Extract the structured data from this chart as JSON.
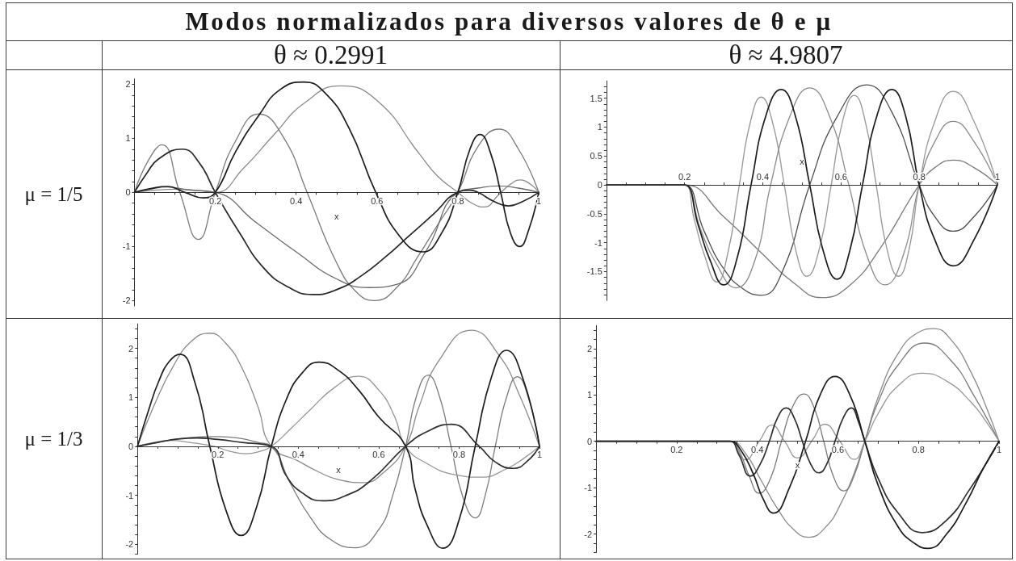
{
  "chart_data": [
    {
      "type": "line",
      "title": "Modos normalizados para diversos valores de θ e μ",
      "subtitle": "θ ≈ 0.2991",
      "ylabel": "μ = 1/5",
      "xlabel": "x",
      "marker": "none",
      "xlim": [
        0,
        1
      ],
      "ylim": [
        -2.1,
        2.1
      ],
      "xticks": [
        {
          "value": 0.05,
          "label": null
        },
        {
          "value": 0.1,
          "label": null
        },
        {
          "value": 0.15,
          "label": null
        },
        0.2,
        {
          "value": 0.25,
          "label": null
        },
        {
          "value": 0.3,
          "label": null
        },
        {
          "value": 0.35,
          "label": null
        },
        0.4,
        {
          "value": 0.45,
          "label": null
        },
        {
          "value": 0.5,
          "label": null
        },
        {
          "value": 0.55,
          "label": null
        },
        0.6,
        {
          "value": 0.65,
          "label": null
        },
        {
          "value": 0.7,
          "label": null
        },
        {
          "value": 0.75,
          "label": null
        },
        0.8,
        {
          "value": 0.85,
          "label": null
        },
        {
          "value": 0.9,
          "label": null
        },
        {
          "value": 0.95,
          "label": null
        },
        1
      ],
      "yticks": [
        -2,
        {
          "value": -1.8,
          "label": null
        },
        {
          "value": -1.6,
          "label": null
        },
        {
          "value": -1.4,
          "label": null
        },
        {
          "value": -1.2,
          "label": null
        },
        -1,
        {
          "value": -0.8,
          "label": null
        },
        {
          "value": -0.6,
          "label": null
        },
        {
          "value": -0.4,
          "label": null
        },
        {
          "value": -0.2,
          "label": null
        },
        0,
        {
          "value": 0.2,
          "label": null
        },
        {
          "value": 0.4,
          "label": null
        },
        {
          "value": 0.6,
          "label": null
        },
        {
          "value": 0.8,
          "label": null
        },
        1,
        {
          "value": 1.2,
          "label": null
        },
        {
          "value": 1.4,
          "label": null
        },
        {
          "value": 1.6,
          "label": null
        },
        {
          "value": 1.8,
          "label": null
        },
        2
      ],
      "series": [
        {
          "color": "#8a8a8a",
          "x": [
            0,
            0.05,
            0.1,
            0.15,
            0.2,
            0.27,
            0.343,
            0.42,
            0.51,
            0.6,
            0.706,
            0.75,
            0.8,
            0.835,
            0.866,
            0.9,
            0.93,
            0.953,
            0.98,
            1
          ],
          "values": [
            0,
            0.04,
            0.06,
            0.04,
            0,
            0.45,
            1.05,
            1.65,
            1.97,
            1.7,
            0.7,
            0.3,
            0,
            -0.2,
            -0.27,
            -0.05,
            0.15,
            0.23,
            0.15,
            0
          ]
        },
        {
          "color": "#7a7a7a",
          "x": [
            0,
            0.035,
            0.068,
            0.112,
            0.158,
            0.2,
            0.25,
            0.308,
            0.37,
            0.427,
            0.5,
            0.55,
            0.594,
            0.65,
            0.7,
            0.75,
            0.8,
            0.85,
            0.902,
            0.95,
            1
          ],
          "values": [
            0,
            0.6,
            0.88,
            0,
            -0.87,
            0,
            0.95,
            1.45,
            1.0,
            0,
            -1.3,
            -1.85,
            -2.0,
            -1.75,
            -1.2,
            -0.6,
            0,
            0.85,
            1.17,
            0.8,
            0
          ]
        },
        {
          "color": "#6a6a6a",
          "x": [
            0,
            0.04,
            0.08,
            0.13,
            0.2,
            0.3,
            0.4,
            0.5,
            0.58,
            0.65,
            0.72,
            0.8,
            0.85,
            0.9,
            0.95,
            1
          ],
          "values": [
            0,
            0.06,
            0.1,
            0.05,
            0,
            -0.55,
            -1.1,
            -1.6,
            -1.76,
            -1.7,
            -1.1,
            0,
            0.08,
            0.12,
            0.08,
            0
          ]
        },
        {
          "color": "#262626",
          "x": [
            0,
            0.03,
            0.06,
            0.118,
            0.16,
            0.2,
            0.26,
            0.32,
            0.38,
            0.441,
            0.5,
            0.56,
            0.62,
            0.68,
            0.74,
            0.8,
            0.83,
            0.85,
            0.89,
            0.925,
            0.96,
            1
          ],
          "values": [
            0,
            0.35,
            0.62,
            0.8,
            0.55,
            0,
            -0.75,
            -1.4,
            -1.75,
            -1.89,
            -1.8,
            -1.55,
            -1.2,
            -0.8,
            -0.4,
            0,
            0.04,
            0,
            -0.17,
            -0.25,
            -0.17,
            0
          ]
        },
        {
          "color": "#1c1c1c",
          "x": [
            0,
            0.04,
            0.08,
            0.125,
            0.17,
            0.2,
            0.25,
            0.31,
            0.36,
            0.419,
            0.47,
            0.53,
            0.597,
            0.655,
            0.713,
            0.76,
            0.8,
            0.83,
            0.855,
            0.88,
            0.906,
            0.93,
            0.953,
            0.975,
            1
          ],
          "values": [
            0,
            0.07,
            0.11,
            0,
            -0.1,
            0,
            0.75,
            1.45,
            1.9,
            2.04,
            1.85,
            1.2,
            0,
            -0.8,
            -1.1,
            -0.75,
            0,
            0.8,
            1.07,
            0.75,
            0,
            -0.75,
            -1.0,
            -0.7,
            0
          ]
        }
      ]
    },
    {
      "type": "line",
      "subtitle": "θ ≈ 4.9807",
      "xlabel": "x",
      "marker": "none",
      "xlim": [
        0,
        1
      ],
      "ylim": [
        -2,
        1.8
      ],
      "xticks": [
        {
          "value": 0.05,
          "label": null
        },
        {
          "value": 0.1,
          "label": null
        },
        {
          "value": 0.15,
          "label": null
        },
        0.2,
        {
          "value": 0.25,
          "label": null
        },
        {
          "value": 0.3,
          "label": null
        },
        {
          "value": 0.35,
          "label": null
        },
        0.4,
        {
          "value": 0.45,
          "label": null
        },
        {
          "value": 0.5,
          "label": null
        },
        {
          "value": 0.55,
          "label": null
        },
        0.6,
        {
          "value": 0.65,
          "label": null
        },
        {
          "value": 0.7,
          "label": null
        },
        {
          "value": 0.75,
          "label": null
        },
        0.8,
        {
          "value": 0.85,
          "label": null
        },
        {
          "value": 0.9,
          "label": null
        },
        {
          "value": 0.95,
          "label": null
        },
        1
      ],
      "yticks": [
        {
          "value": -1.9,
          "label": null
        },
        {
          "value": -1.8,
          "label": null
        },
        {
          "value": -1.7,
          "label": null
        },
        {
          "value": -1.6,
          "label": null
        },
        -1.5,
        {
          "value": -1.4,
          "label": null
        },
        {
          "value": -1.3,
          "label": null
        },
        {
          "value": -1.2,
          "label": null
        },
        {
          "value": -1.1,
          "label": null
        },
        -1,
        {
          "value": -0.9,
          "label": null
        },
        {
          "value": -0.8,
          "label": null
        },
        {
          "value": -0.7,
          "label": null
        },
        {
          "value": -0.6,
          "label": null
        },
        -0.5,
        {
          "value": -0.4,
          "label": null
        },
        {
          "value": -0.3,
          "label": null
        },
        {
          "value": -0.2,
          "label": null
        },
        {
          "value": -0.1,
          "label": null
        },
        0,
        {
          "value": 0.1,
          "label": null
        },
        {
          "value": 0.2,
          "label": null
        },
        {
          "value": 0.3,
          "label": null
        },
        {
          "value": 0.4,
          "label": null
        },
        0.5,
        {
          "value": 0.6,
          "label": null
        },
        {
          "value": 0.7,
          "label": null
        },
        {
          "value": 0.8,
          "label": null
        },
        {
          "value": 0.9,
          "label": null
        },
        1,
        {
          "value": 1.1,
          "label": null
        },
        {
          "value": 1.2,
          "label": null
        },
        {
          "value": 1.3,
          "label": null
        },
        {
          "value": 1.4,
          "label": null
        },
        1.5,
        {
          "value": 1.6,
          "label": null
        },
        {
          "value": 1.7,
          "label": null
        }
      ],
      "series": [
        {
          "color": "#7a7a7a",
          "x": [
            0,
            0.17,
            0.2,
            0.3,
            0.4,
            0.48,
            0.551,
            0.62,
            0.7,
            0.8,
            0.84,
            0.887,
            0.94,
            1
          ],
          "values": [
            0,
            0,
            0,
            -0.55,
            -1.2,
            -1.7,
            -1.95,
            -1.75,
            -1.1,
            0,
            0.3,
            0.43,
            0.3,
            0
          ]
        },
        {
          "color": "#4d4d4d",
          "x": [
            0,
            0.17,
            0.2,
            0.25,
            0.3,
            0.35,
            0.396,
            0.45,
            0.52,
            0.59,
            0.666,
            0.73,
            0.8,
            0.84,
            0.887,
            0.94,
            1
          ],
          "values": [
            0,
            0,
            0,
            -0.8,
            -1.45,
            -1.8,
            -1.91,
            -1.5,
            0,
            1.18,
            1.73,
            1.26,
            0,
            -0.55,
            -0.8,
            -0.55,
            0
          ]
        },
        {
          "color": "#8a8a8a",
          "x": [
            0,
            0.17,
            0.2,
            0.24,
            0.28,
            0.332,
            0.38,
            0.42,
            0.47,
            0.52,
            0.57,
            0.62,
            0.665,
            0.713,
            0.76,
            0.8,
            0.84,
            0.887,
            0.94,
            1
          ],
          "values": [
            0,
            0,
            0,
            -0.75,
            -1.35,
            -1.78,
            -1.3,
            0,
            1.2,
            1.68,
            1.2,
            0,
            -1.2,
            -1.73,
            -1.2,
            0,
            0.75,
            1.1,
            0.75,
            0
          ]
        },
        {
          "color": "#969696",
          "x": [
            0,
            0.17,
            0.2,
            0.225,
            0.25,
            0.283,
            0.31,
            0.34,
            0.368,
            0.396,
            0.425,
            0.455,
            0.484,
            0.513,
            0.544,
            0.575,
            0.604,
            0.634,
            0.662,
            0.69,
            0.718,
            0.747,
            0.774,
            0.8,
            0.84,
            0.887,
            0.94,
            1
          ],
          "values": [
            0,
            0,
            0,
            -0.6,
            -1.2,
            -1.68,
            -1.2,
            0,
            1.08,
            1.52,
            1.08,
            0,
            -1.12,
            -1.58,
            -1.12,
            0,
            1.1,
            1.55,
            1.1,
            0,
            -1.12,
            -1.58,
            -1.12,
            0,
            1.1,
            1.62,
            1.1,
            0
          ]
        },
        {
          "color": "#1c1c1c",
          "x": [
            0,
            0.17,
            0.2,
            0.235,
            0.265,
            0.3,
            0.335,
            0.37,
            0.408,
            0.447,
            0.483,
            0.52,
            0.555,
            0.59,
            0.622,
            0.655,
            0.692,
            0.73,
            0.765,
            0.8,
            0.84,
            0.887,
            0.94,
            1
          ],
          "values": [
            0,
            0,
            0,
            -0.7,
            -1.3,
            -1.73,
            -1.25,
            0,
            1.2,
            1.65,
            1.2,
            0,
            -1.15,
            -1.63,
            -1.15,
            0,
            1.2,
            1.65,
            1.2,
            0,
            -0.95,
            -1.4,
            -0.95,
            0
          ]
        }
      ]
    },
    {
      "type": "line",
      "ylabel": "μ = 1/3",
      "xlabel": "x",
      "marker": "none",
      "xlim": [
        0,
        1
      ],
      "ylim": [
        -2.2,
        2.5
      ],
      "xticks": [
        {
          "value": 0.05,
          "label": null
        },
        {
          "value": 0.1,
          "label": null
        },
        {
          "value": 0.15,
          "label": null
        },
        0.2,
        {
          "value": 0.25,
          "label": null
        },
        {
          "value": 0.3,
          "label": null
        },
        {
          "value": 0.35,
          "label": null
        },
        0.4,
        {
          "value": 0.45,
          "label": null
        },
        {
          "value": 0.5,
          "label": null
        },
        {
          "value": 0.55,
          "label": null
        },
        0.6,
        {
          "value": 0.65,
          "label": null
        },
        {
          "value": 0.7,
          "label": null
        },
        {
          "value": 0.75,
          "label": null
        },
        0.8,
        {
          "value": 0.85,
          "label": null
        },
        {
          "value": 0.9,
          "label": null
        },
        {
          "value": 0.95,
          "label": null
        },
        1
      ],
      "yticks": [
        {
          "value": -2.2,
          "label": null
        },
        -2,
        {
          "value": -1.8,
          "label": null
        },
        {
          "value": -1.6,
          "label": null
        },
        {
          "value": -1.4,
          "label": null
        },
        {
          "value": -1.2,
          "label": null
        },
        -1,
        {
          "value": -0.8,
          "label": null
        },
        {
          "value": -0.6,
          "label": null
        },
        {
          "value": -0.4,
          "label": null
        },
        {
          "value": -0.2,
          "label": null
        },
        0,
        {
          "value": 0.2,
          "label": null
        },
        {
          "value": 0.4,
          "label": null
        },
        {
          "value": 0.6,
          "label": null
        },
        {
          "value": 0.8,
          "label": null
        },
        1,
        {
          "value": 1.2,
          "label": null
        },
        {
          "value": 1.4,
          "label": null
        },
        {
          "value": 1.6,
          "label": null
        },
        {
          "value": 1.8,
          "label": null
        },
        2,
        {
          "value": 2.2,
          "label": null
        },
        {
          "value": 2.4,
          "label": null
        }
      ],
      "series": [
        {
          "color": "#8a8a8a",
          "x": [
            0,
            0.045,
            0.09,
            0.135,
            0.18,
            0.22,
            0.26,
            0.3,
            0.333,
            0.4,
            0.45,
            0.5,
            0.563,
            0.61,
            0.667,
            0.7,
            0.75,
            0.83,
            0.9,
            0.95,
            1
          ],
          "values": [
            0,
            0.9,
            1.65,
            2.15,
            2.31,
            2.1,
            1.6,
            0.8,
            0,
            -0.3,
            -0.52,
            -0.68,
            -0.74,
            -0.55,
            0,
            0.8,
            1.75,
            2.37,
            1.85,
            1.05,
            0
          ]
        },
        {
          "color": "#7a7a7a",
          "x": [
            0,
            0.05,
            0.1,
            0.15,
            0.2,
            0.25,
            0.3,
            0.333,
            0.38,
            0.43,
            0.48,
            0.541,
            0.6,
            0.635,
            0.667,
            0.695,
            0.723,
            0.75,
            0.78,
            0.81,
            0.84,
            0.865,
            0.89,
            0.918,
            0.945,
            0.972,
            1
          ],
          "values": [
            0,
            0.08,
            0.15,
            0.19,
            0.2,
            0.17,
            0.08,
            0,
            -0.75,
            -1.45,
            -1.9,
            -2.07,
            -1.7,
            -1.0,
            0,
            1.05,
            1.45,
            1.05,
            0,
            -1.05,
            -1.46,
            -1.0,
            0,
            1.0,
            1.42,
            1.0,
            0
          ]
        },
        {
          "color": "#969696",
          "x": [
            0,
            0.04,
            0.08,
            0.13,
            0.19,
            0.23,
            0.27,
            0.305,
            0.333,
            0.38,
            0.43,
            0.49,
            0.549,
            0.6,
            0.64,
            0.667,
            0.72,
            0.79,
            0.855,
            0.92,
            0.96,
            1
          ],
          "values": [
            0,
            0.08,
            0.12,
            0.08,
            0,
            -0.1,
            -0.15,
            -0.1,
            0,
            0.35,
            0.75,
            1.2,
            1.43,
            1.15,
            0.6,
            0,
            -0.35,
            -0.58,
            -0.63,
            -0.45,
            -0.25,
            0
          ]
        },
        {
          "color": "#2e2e2e",
          "x": [
            0,
            0.05,
            0.1,
            0.15,
            0.2,
            0.26,
            0.333,
            0.37,
            0.41,
            0.46,
            0.52,
            0.58,
            0.667,
            0.72,
            0.78,
            0.85,
            0.89,
            0.936,
            0.97,
            1
          ],
          "values": [
            0,
            0.08,
            0.15,
            0.17,
            0.14,
            0.08,
            0,
            -0.6,
            -0.95,
            -1.11,
            -1.0,
            -0.7,
            0,
            0.3,
            0.45,
            0,
            -0.32,
            -0.45,
            -0.3,
            0
          ]
        },
        {
          "color": "#1c1c1c",
          "x": [
            0,
            0.027,
            0.053,
            0.08,
            0.106,
            0.143,
            0.18,
            0.22,
            0.258,
            0.296,
            0.333,
            0.37,
            0.41,
            0.452,
            0.5,
            0.55,
            0.6,
            0.667,
            0.69,
            0.72,
            0.76,
            0.8,
            0.84,
            0.88,
            0.918,
            0.96,
            1
          ],
          "values": [
            0,
            0.72,
            1.33,
            1.74,
            1.88,
            1.3,
            0,
            -1.3,
            -1.82,
            -1.25,
            0,
            0.95,
            1.5,
            1.72,
            1.55,
            1.15,
            0.6,
            0,
            -0.85,
            -1.6,
            -2.08,
            -1.5,
            0,
            1.4,
            1.96,
            1.35,
            0
          ]
        }
      ]
    },
    {
      "type": "line",
      "xlabel": "x",
      "marker": "none",
      "xlim": [
        0,
        1
      ],
      "ylim": [
        -2.4,
        2.5
      ],
      "xticks": [
        {
          "value": 0.05,
          "label": null
        },
        {
          "value": 0.1,
          "label": null
        },
        {
          "value": 0.15,
          "label": null
        },
        0.2,
        {
          "value": 0.25,
          "label": null
        },
        {
          "value": 0.3,
          "label": null
        },
        {
          "value": 0.35,
          "label": null
        },
        0.4,
        {
          "value": 0.45,
          "label": null
        },
        {
          "value": 0.5,
          "label": null
        },
        {
          "value": 0.55,
          "label": null
        },
        0.6,
        {
          "value": 0.65,
          "label": null
        },
        {
          "value": 0.7,
          "label": null
        },
        {
          "value": 0.75,
          "label": null
        },
        0.8,
        {
          "value": 0.85,
          "label": null
        },
        {
          "value": 0.9,
          "label": null
        },
        {
          "value": 0.95,
          "label": null
        },
        1
      ],
      "yticks": [
        {
          "value": -2.4,
          "label": null
        },
        {
          "value": -2.2,
          "label": null
        },
        -2,
        {
          "value": -1.8,
          "label": null
        },
        {
          "value": -1.6,
          "label": null
        },
        {
          "value": -1.4,
          "label": null
        },
        {
          "value": -1.2,
          "label": null
        },
        -1,
        {
          "value": -0.8,
          "label": null
        },
        {
          "value": -0.6,
          "label": null
        },
        {
          "value": -0.4,
          "label": null
        },
        {
          "value": -0.2,
          "label": null
        },
        0,
        {
          "value": 0.2,
          "label": null
        },
        {
          "value": 0.4,
          "label": null
        },
        {
          "value": 0.6,
          "label": null
        },
        {
          "value": 0.8,
          "label": null
        },
        1,
        {
          "value": 1.2,
          "label": null
        },
        {
          "value": 1.4,
          "label": null
        },
        {
          "value": 1.6,
          "label": null
        },
        {
          "value": 1.8,
          "label": null
        },
        2,
        {
          "value": 2.2,
          "label": null
        },
        {
          "value": 2.4,
          "label": null
        }
      ],
      "series": [
        {
          "color": "#8a8a8a",
          "x": [
            0,
            0.3,
            0.333,
            0.37,
            0.41,
            0.45,
            0.49,
            0.527,
            0.57,
            0.61,
            0.64,
            0.667,
            0.7,
            0.75,
            0.8,
            0.838,
            0.88,
            0.93,
            0.97,
            1
          ],
          "values": [
            0,
            0,
            0,
            -0.25,
            -0.85,
            -1.45,
            -1.9,
            -2.07,
            -1.85,
            -1.3,
            -0.7,
            0,
            0.95,
            1.9,
            2.35,
            2.43,
            2.2,
            1.5,
            0.7,
            0
          ]
        },
        {
          "color": "#7a7a7a",
          "x": [
            0,
            0.3,
            0.333,
            0.355,
            0.38,
            0.405,
            0.433,
            0.46,
            0.488,
            0.516,
            0.54,
            0.565,
            0.59,
            0.615,
            0.64,
            0.667,
            0.7,
            0.75,
            0.816,
            0.88,
            0.94,
            1
          ],
          "values": [
            0,
            0,
            0,
            -0.2,
            -0.75,
            -1.12,
            -0.8,
            0,
            0.75,
            1.02,
            0.75,
            0,
            -0.78,
            -1.07,
            -0.75,
            0,
            0.85,
            1.65,
            2.12,
            1.75,
            0.95,
            0
          ]
        },
        {
          "color": "#969696",
          "x": [
            0,
            0.3,
            0.333,
            0.37,
            0.405,
            0.436,
            0.468,
            0.5,
            0.535,
            0.568,
            0.605,
            0.641,
            0.667,
            0.7,
            0.75,
            0.81,
            0.87,
            0.93,
            0.97,
            1
          ],
          "values": [
            0,
            0,
            0,
            -0.4,
            0,
            0.35,
            0,
            -0.36,
            0,
            0.37,
            0,
            -0.39,
            0,
            0.6,
            1.2,
            1.47,
            1.3,
            0.85,
            0.4,
            0
          ]
        },
        {
          "color": "#2e2e2e",
          "x": [
            0,
            0.3,
            0.333,
            0.355,
            0.383,
            0.407,
            0.43,
            0.451,
            0.472,
            0.492,
            0.512,
            0.532,
            0.553,
            0.573,
            0.593,
            0.613,
            0.634,
            0.65,
            0.667,
            0.7,
            0.75,
            0.81,
            0.87,
            0.93,
            0.97,
            1
          ],
          "values": [
            0,
            0,
            0,
            -0.3,
            -0.75,
            -0.5,
            0,
            0.52,
            0.72,
            0.5,
            0,
            -0.48,
            -0.68,
            -0.48,
            0,
            0.5,
            0.72,
            0.45,
            0,
            -0.8,
            -1.55,
            -1.97,
            -1.7,
            -1.0,
            -0.45,
            0
          ]
        },
        {
          "color": "#1c1c1c",
          "x": [
            0,
            0.3,
            0.333,
            0.36,
            0.39,
            0.415,
            0.44,
            0.48,
            0.52,
            0.556,
            0.593,
            0.63,
            0.667,
            0.7,
            0.75,
            0.79,
            0.824,
            0.87,
            0.92,
            0.96,
            1
          ],
          "values": [
            0,
            0,
            0,
            -0.2,
            -0.7,
            -1.25,
            -1.55,
            -1.0,
            0,
            1.0,
            1.4,
            1.0,
            0,
            -0.95,
            -1.85,
            -2.2,
            -2.31,
            -2.0,
            -1.3,
            -0.6,
            0
          ]
        }
      ]
    }
  ]
}
